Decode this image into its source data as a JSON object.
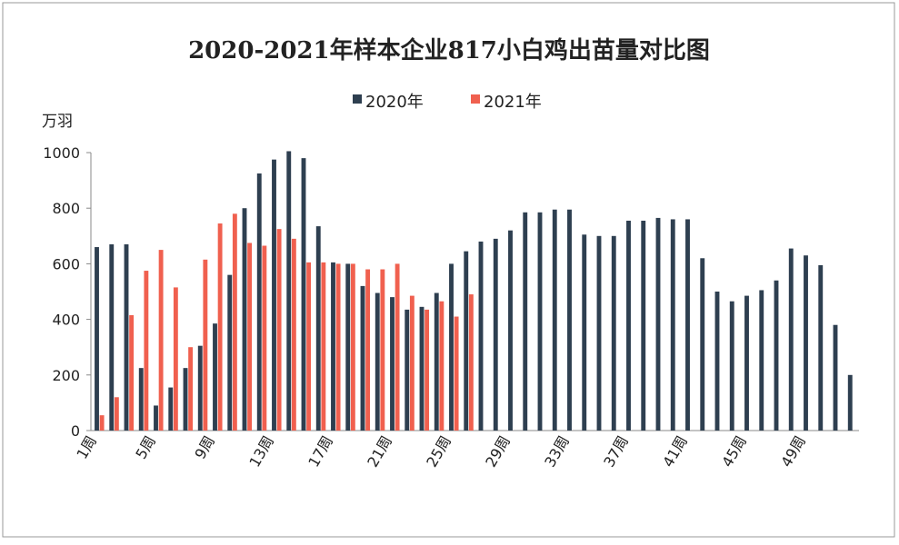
{
  "chart_data": {
    "type": "bar",
    "title": "2020-2021年样本企业817小白鸡出苗量对比图",
    "y_label": "万羽",
    "categories": [
      "1周",
      null,
      null,
      null,
      "5周",
      null,
      null,
      null,
      "9周",
      null,
      null,
      null,
      "13周",
      null,
      null,
      null,
      "17周",
      null,
      null,
      null,
      "21周",
      null,
      null,
      null,
      "25周",
      null,
      null,
      null,
      "29周",
      null,
      null,
      null,
      "33周",
      null,
      null,
      null,
      "37周",
      null,
      null,
      null,
      "41周",
      null,
      null,
      null,
      "45周",
      null,
      null,
      null,
      "49周",
      null,
      null,
      null
    ],
    "series": [
      {
        "name": "2020年",
        "color": "#2e3f50",
        "values": [
          660,
          670,
          670,
          225,
          90,
          155,
          225,
          305,
          385,
          560,
          800,
          925,
          975,
          1005,
          980,
          735,
          605,
          600,
          520,
          495,
          480,
          435,
          445,
          495,
          600,
          645,
          680,
          690,
          720,
          785,
          785,
          795,
          795,
          705,
          700,
          700,
          755,
          755,
          765,
          760,
          760,
          620,
          500,
          465,
          485,
          505,
          540,
          655,
          630,
          595,
          380,
          200
        ]
      },
      {
        "name": "2021年",
        "color": "#f0604f",
        "values": [
          55,
          120,
          415,
          575,
          650,
          515,
          300,
          615,
          745,
          780,
          675,
          665,
          725,
          690,
          605,
          605,
          600,
          600,
          580,
          580,
          600,
          485,
          435,
          465,
          410,
          490,
          null,
          null,
          null,
          null,
          null,
          null,
          null,
          null,
          null,
          null,
          null,
          null,
          null,
          null,
          null,
          null,
          null,
          null,
          null,
          null,
          null,
          null,
          null,
          null,
          null,
          null
        ]
      }
    ],
    "ylim": [
      0,
      1000
    ],
    "yticks": [
      0,
      200,
      400,
      600,
      800,
      1000
    ],
    "legend": "top"
  }
}
